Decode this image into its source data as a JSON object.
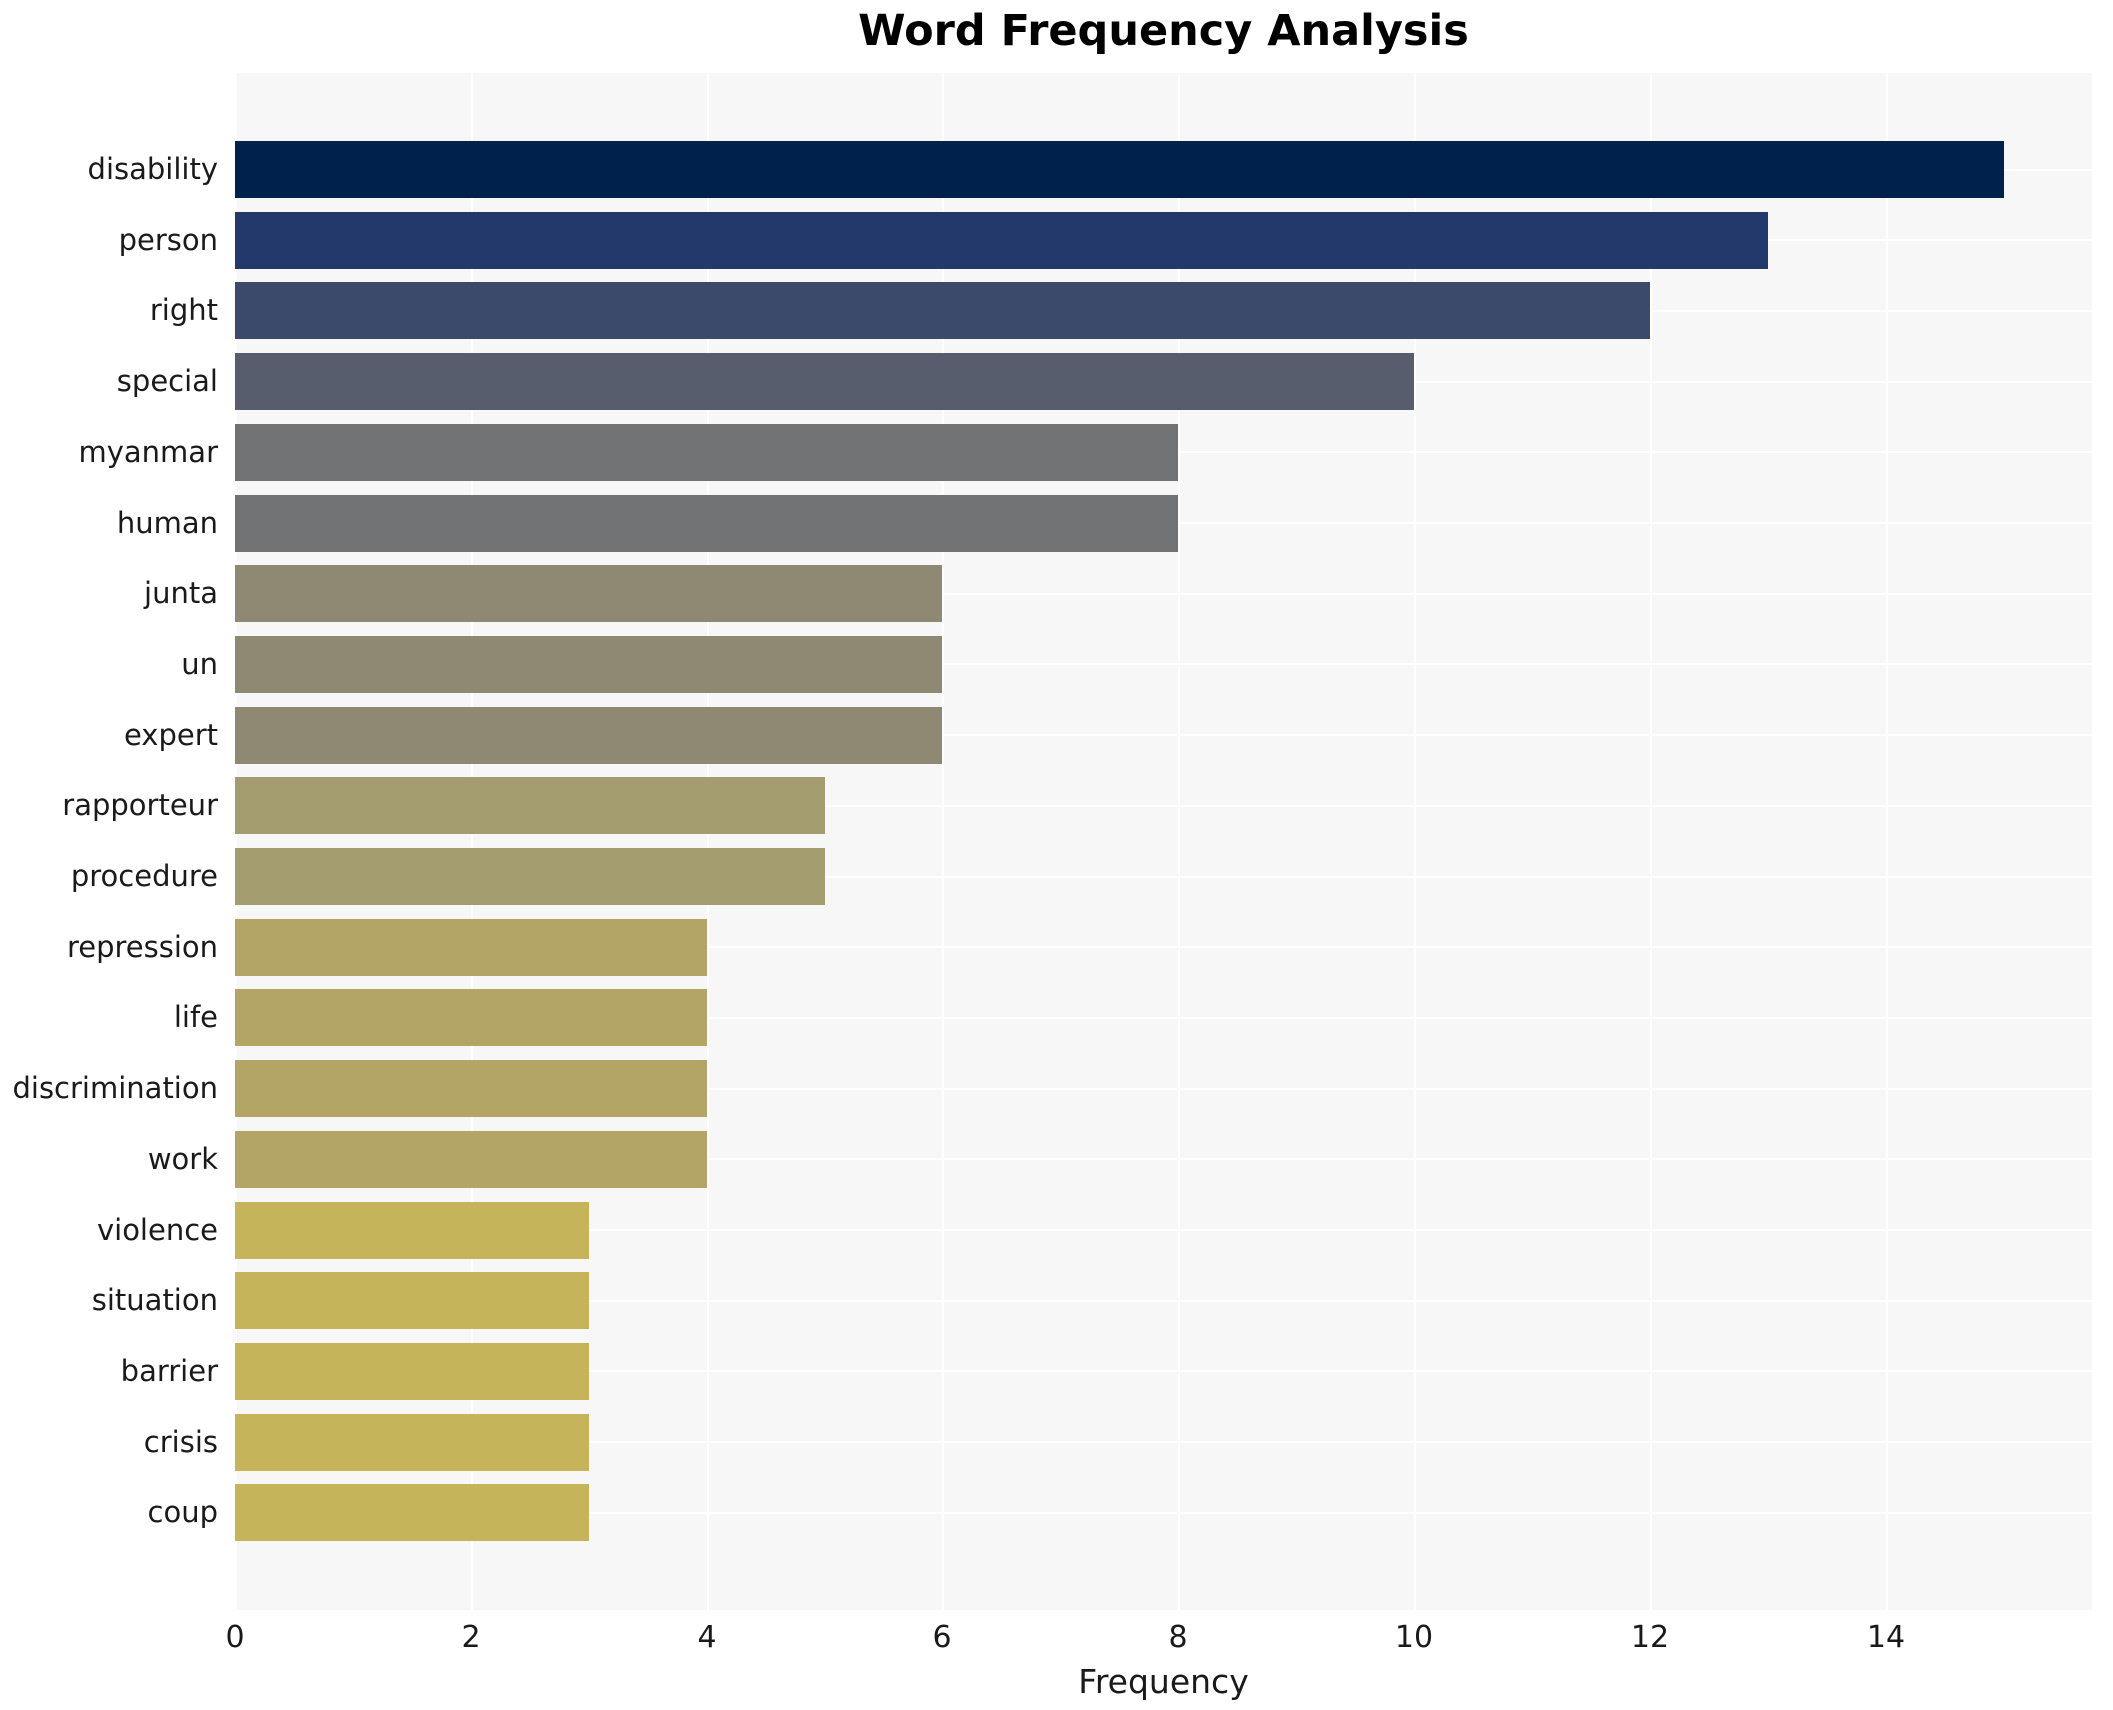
{
  "chart_data": {
    "type": "bar",
    "orientation": "horizontal",
    "title": "Word Frequency Analysis",
    "xlabel": "Frequency",
    "ylabel": "",
    "categories": [
      "disability",
      "person",
      "right",
      "special",
      "myanmar",
      "human",
      "junta",
      "un",
      "expert",
      "rapporteur",
      "procedure",
      "repression",
      "life",
      "discrimination",
      "work",
      "violence",
      "situation",
      "barrier",
      "crisis",
      "coup"
    ],
    "values": [
      15,
      13,
      12,
      10,
      8,
      8,
      6,
      6,
      6,
      5,
      5,
      4,
      4,
      4,
      4,
      3,
      3,
      3,
      3,
      3
    ],
    "bar_colors": [
      "#01214d",
      "#24396b",
      "#3b4a6b",
      "#575d6d",
      "#717274",
      "#717274",
      "#8f8973",
      "#8f8973",
      "#8f8973",
      "#a49d70",
      "#a49d70",
      "#b2a566",
      "#b2a566",
      "#b2a566",
      "#b2a566",
      "#c6b45a",
      "#c6b45a",
      "#c6b45a",
      "#c6b45a",
      "#c6b45a"
    ],
    "x_ticks": [
      0,
      2,
      4,
      6,
      8,
      10,
      12,
      14
    ],
    "xlim": [
      0,
      15.75
    ],
    "grid": true,
    "legend": false,
    "plot_background": "#f7f7f8",
    "grid_color": "#ffffff"
  }
}
